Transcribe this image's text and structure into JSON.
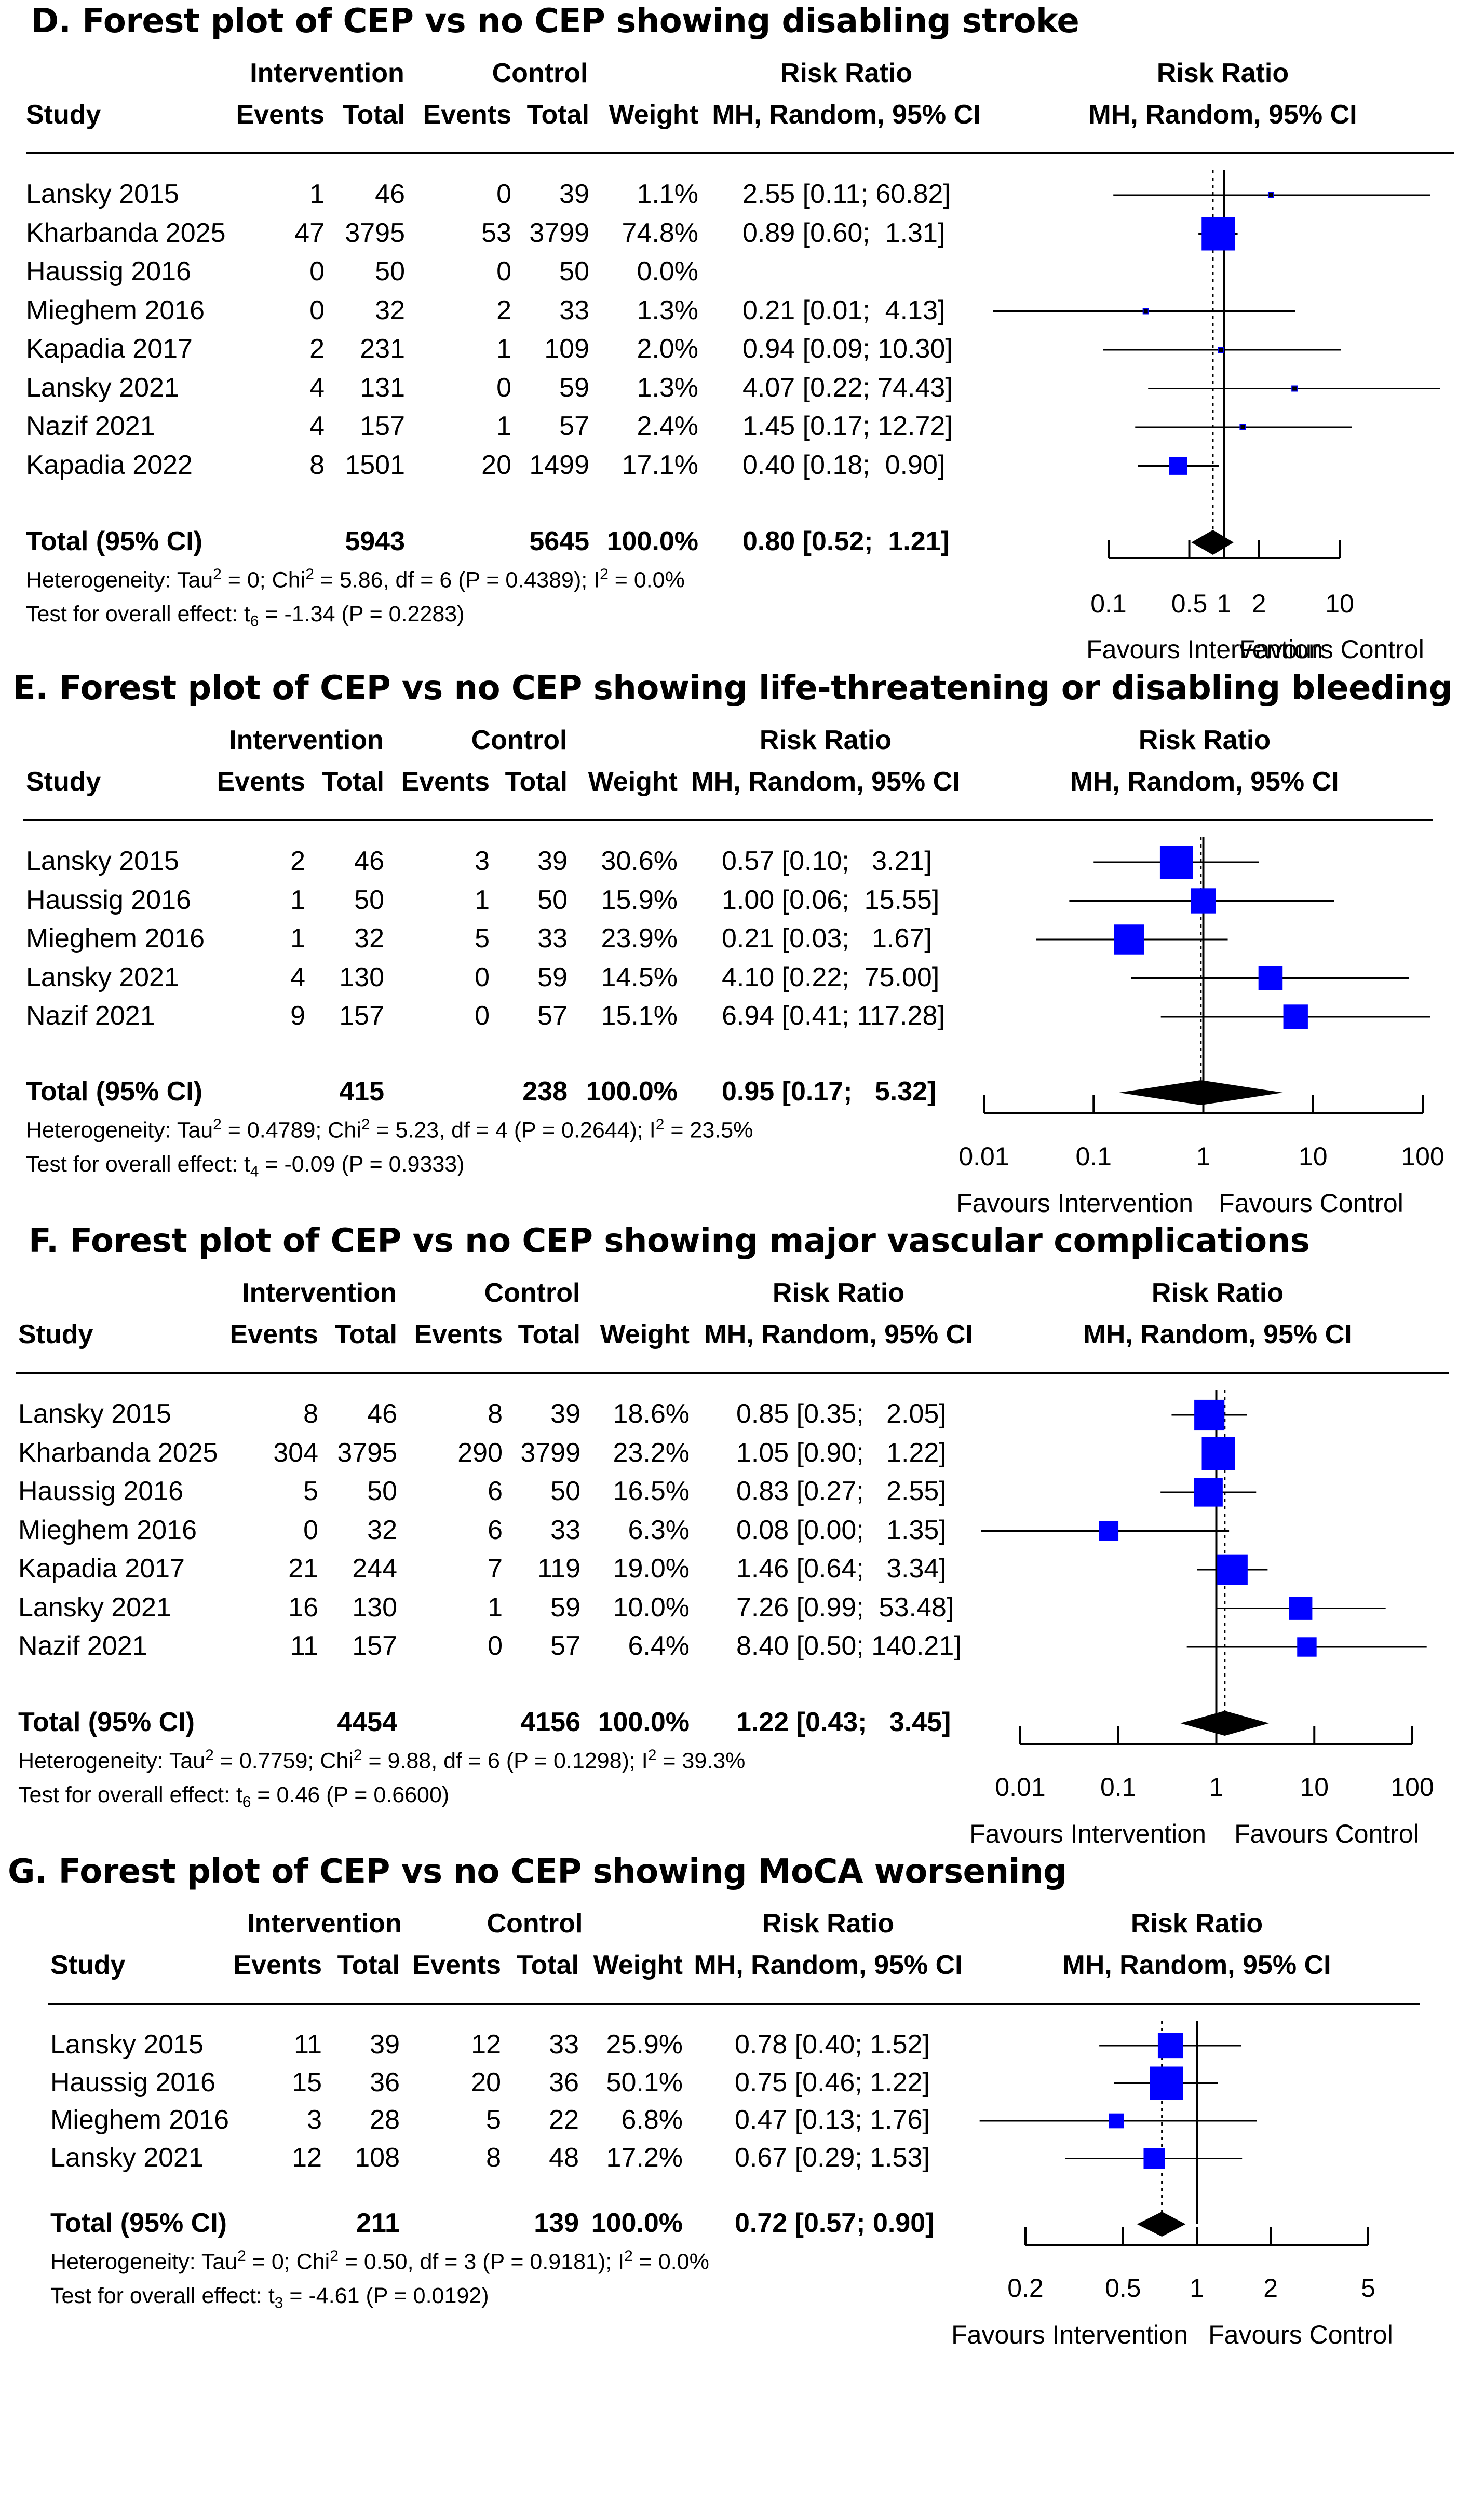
{
  "headers": {
    "study": "Study",
    "intervention": "Intervention",
    "control": "Control",
    "events": "Events",
    "total": "Total",
    "weight": "Weight",
    "risk_ratio": "Risk Ratio",
    "method": "MH, Random, 95% CI",
    "favours_intervention": "Favours Intervention",
    "favours_control": "Favours Control"
  },
  "colors": {
    "box": "#0000ff",
    "line": "#000000",
    "diamond": "#000000"
  },
  "chart_data": [
    {
      "type": "forest",
      "title": "D. Forest plot of CEP vs no CEP showing disabling stroke",
      "xscale": "log",
      "xlim": [
        0.1,
        10
      ],
      "ticks": [
        0.1,
        0.5,
        1,
        2,
        10
      ],
      "tick_labels": [
        "0.1",
        "0.5",
        "1",
        "2",
        "10"
      ],
      "studies": [
        {
          "name": "Lansky 2015",
          "ie": "1",
          "it": "46",
          "ce": "0",
          "ct": "39",
          "w": "1.1%",
          "ci": "2.55 [0.11; 60.82]",
          "rr": 2.55,
          "lo": 0.11,
          "hi": 60.82,
          "wt": 1.1
        },
        {
          "name": "Kharbanda 2025",
          "ie": "47",
          "it": "3795",
          "ce": "53",
          "ct": "3799",
          "w": "74.8%",
          "ci": "0.89 [0.60;  1.31]",
          "rr": 0.89,
          "lo": 0.6,
          "hi": 1.31,
          "wt": 74.8
        },
        {
          "name": "Haussig 2016",
          "ie": "0",
          "it": "50",
          "ce": "0",
          "ct": "50",
          "w": "0.0%",
          "ci": "",
          "rr": null,
          "lo": null,
          "hi": null,
          "wt": 0
        },
        {
          "name": "Mieghem 2016",
          "ie": "0",
          "it": "32",
          "ce": "2",
          "ct": "33",
          "w": "1.3%",
          "ci": "0.21 [0.01;  4.13]",
          "rr": 0.21,
          "lo": 0.01,
          "hi": 4.13,
          "wt": 1.3
        },
        {
          "name": "Kapadia 2017",
          "ie": "2",
          "it": "231",
          "ce": "1",
          "ct": "109",
          "w": "2.0%",
          "ci": "0.94 [0.09; 10.30]",
          "rr": 0.94,
          "lo": 0.09,
          "hi": 10.3,
          "wt": 2.0
        },
        {
          "name": "Lansky 2021",
          "ie": "4",
          "it": "131",
          "ce": "0",
          "ct": "59",
          "w": "1.3%",
          "ci": "4.07 [0.22; 74.43]",
          "rr": 4.07,
          "lo": 0.22,
          "hi": 74.43,
          "wt": 1.3
        },
        {
          "name": "Nazif 2021",
          "ie": "4",
          "it": "157",
          "ce": "1",
          "ct": "57",
          "w": "2.4%",
          "ci": "1.45 [0.17; 12.72]",
          "rr": 1.45,
          "lo": 0.17,
          "hi": 12.72,
          "wt": 2.4
        },
        {
          "name": "Kapadia 2022",
          "ie": "8",
          "it": "1501",
          "ce": "20",
          "ct": "1499",
          "w": "17.1%",
          "ci": "0.40 [0.18;  0.90]",
          "rr": 0.4,
          "lo": 0.18,
          "hi": 0.9,
          "wt": 17.1
        }
      ],
      "total": {
        "label": "Total (95% CI)",
        "it": "5943",
        "ct": "5645",
        "w": "100.0%",
        "ci": "0.80 [0.52;  1.21]",
        "rr": 0.8,
        "lo": 0.52,
        "hi": 1.21
      },
      "het_prefix": "Heterogeneity: Tau",
      "het_text": " = 0; Chi",
      "het_text2": " = 5.86, df = 6 (P = 0.4389); I",
      "het_text3": " = 0.0%",
      "sup2": "2",
      "test_prefix": "Test for overall effect: t",
      "test_sub": "6",
      "test_text": " = -1.34 (P = 0.2283)"
    },
    {
      "type": "forest",
      "title": "E. Forest plot of CEP vs no CEP showing life-threatening or disabling bleeding",
      "xscale": "log",
      "xlim": [
        0.01,
        100
      ],
      "ticks": [
        0.01,
        0.1,
        1,
        10,
        100
      ],
      "tick_labels": [
        "0.01",
        "0.1",
        "1",
        "10",
        "100"
      ],
      "studies": [
        {
          "name": "Lansky 2015",
          "ie": "2",
          "it": "46",
          "ce": "3",
          "ct": "39",
          "w": "30.6%",
          "ci": "0.57 [0.10;   3.21]",
          "rr": 0.57,
          "lo": 0.1,
          "hi": 3.21,
          "wt": 30.6
        },
        {
          "name": "Haussig 2016",
          "ie": "1",
          "it": "50",
          "ce": "1",
          "ct": "50",
          "w": "15.9%",
          "ci": "1.00 [0.06;  15.55]",
          "rr": 1.0,
          "lo": 0.06,
          "hi": 15.55,
          "wt": 15.9
        },
        {
          "name": "Mieghem 2016",
          "ie": "1",
          "it": "32",
          "ce": "5",
          "ct": "33",
          "w": "23.9%",
          "ci": "0.21 [0.03;   1.67]",
          "rr": 0.21,
          "lo": 0.03,
          "hi": 1.67,
          "wt": 23.9
        },
        {
          "name": "Lansky 2021",
          "ie": "4",
          "it": "130",
          "ce": "0",
          "ct": "59",
          "w": "14.5%",
          "ci": "4.10 [0.22;  75.00]",
          "rr": 4.1,
          "lo": 0.22,
          "hi": 75.0,
          "wt": 14.5
        },
        {
          "name": "Nazif 2021",
          "ie": "9",
          "it": "157",
          "ce": "0",
          "ct": "57",
          "w": "15.1%",
          "ci": "6.94 [0.41; 117.28]",
          "rr": 6.94,
          "lo": 0.41,
          "hi": 117.28,
          "wt": 15.1
        }
      ],
      "total": {
        "label": "Total (95% CI)",
        "it": "415",
        "ct": "238",
        "w": "100.0%",
        "ci": "0.95 [0.17;   5.32]",
        "rr": 0.95,
        "lo": 0.17,
        "hi": 5.32
      },
      "het_prefix": "Heterogeneity: Tau",
      "het_text": " = 0.4789; Chi",
      "het_text2": " = 5.23, df = 4 (P = 0.2644); I",
      "het_text3": " = 23.5%",
      "sup2": "2",
      "test_prefix": "Test for overall effect: t",
      "test_sub": "4",
      "test_text": " = -0.09 (P = 0.9333)"
    },
    {
      "type": "forest",
      "title": "F. Forest plot of CEP vs no CEP showing major vascular complications",
      "xscale": "log",
      "xlim": [
        0.01,
        100
      ],
      "ticks": [
        0.01,
        0.1,
        1,
        10,
        100
      ],
      "tick_labels": [
        "0.01",
        "0.1",
        "1",
        "10",
        "100"
      ],
      "studies": [
        {
          "name": "Lansky 2015",
          "ie": "8",
          "it": "46",
          "ce": "8",
          "ct": "39",
          "w": "18.6%",
          "ci": "0.85 [0.35;   2.05]",
          "rr": 0.85,
          "lo": 0.35,
          "hi": 2.05,
          "wt": 18.6
        },
        {
          "name": "Kharbanda 2025",
          "ie": "304",
          "it": "3795",
          "ce": "290",
          "ct": "3799",
          "w": "23.2%",
          "ci": "1.05 [0.90;   1.22]",
          "rr": 1.05,
          "lo": 0.9,
          "hi": 1.22,
          "wt": 23.2
        },
        {
          "name": "Haussig 2016",
          "ie": "5",
          "it": "50",
          "ce": "6",
          "ct": "50",
          "w": "16.5%",
          "ci": "0.83 [0.27;   2.55]",
          "rr": 0.83,
          "lo": 0.27,
          "hi": 2.55,
          "wt": 16.5
        },
        {
          "name": "Mieghem 2016",
          "ie": "0",
          "it": "32",
          "ce": "6",
          "ct": "33",
          "w": "6.3%",
          "ci": "0.08 [0.00;   1.35]",
          "rr": 0.08,
          "lo": 0.004,
          "hi": 1.35,
          "wt": 6.3
        },
        {
          "name": "Kapadia 2017",
          "ie": "21",
          "it": "244",
          "ce": "7",
          "ct": "119",
          "w": "19.0%",
          "ci": "1.46 [0.64;   3.34]",
          "rr": 1.46,
          "lo": 0.64,
          "hi": 3.34,
          "wt": 19.0
        },
        {
          "name": "Lansky 2021",
          "ie": "16",
          "it": "130",
          "ce": "1",
          "ct": "59",
          "w": "10.0%",
          "ci": "7.26 [0.99;  53.48]",
          "rr": 7.26,
          "lo": 0.99,
          "hi": 53.48,
          "wt": 10.0
        },
        {
          "name": "Nazif 2021",
          "ie": "11",
          "it": "157",
          "ce": "0",
          "ct": "57",
          "w": "6.4%",
          "ci": "8.40 [0.50; 140.21]",
          "rr": 8.4,
          "lo": 0.5,
          "hi": 140.21,
          "wt": 6.4
        }
      ],
      "total": {
        "label": "Total (95% CI)",
        "it": "4454",
        "ct": "4156",
        "w": "100.0%",
        "ci": "1.22 [0.43;   3.45]",
        "rr": 1.22,
        "lo": 0.43,
        "hi": 3.45
      },
      "het_prefix": "Heterogeneity: Tau",
      "het_text": " = 0.7759; Chi",
      "het_text2": " = 9.88, df = 6 (P = 0.1298); I",
      "het_text3": " = 39.3%",
      "sup2": "2",
      "test_prefix": "Test for overall effect: t",
      "test_sub": "6",
      "test_text": " = 0.46 (P = 0.6600)"
    },
    {
      "type": "forest",
      "title": "G. Forest plot of CEP vs no CEP showing MoCA worsening",
      "xscale": "log",
      "xlim": [
        0.2,
        5
      ],
      "ticks": [
        0.2,
        0.5,
        1,
        2,
        5
      ],
      "tick_labels": [
        "0.2",
        "0.5",
        "1",
        "2",
        "5"
      ],
      "studies": [
        {
          "name": "Lansky 2015",
          "ie": "11",
          "it": "39",
          "ce": "12",
          "ct": "33",
          "w": "25.9%",
          "ci": "0.78 [0.40; 1.52]",
          "rr": 0.78,
          "lo": 0.4,
          "hi": 1.52,
          "wt": 25.9
        },
        {
          "name": "Haussig 2016",
          "ie": "15",
          "it": "36",
          "ce": "20",
          "ct": "36",
          "w": "50.1%",
          "ci": "0.75 [0.46; 1.22]",
          "rr": 0.75,
          "lo": 0.46,
          "hi": 1.22,
          "wt": 50.1
        },
        {
          "name": "Mieghem 2016",
          "ie": "3",
          "it": "28",
          "ce": "5",
          "ct": "22",
          "w": "6.8%",
          "ci": "0.47 [0.13; 1.76]",
          "rr": 0.47,
          "lo": 0.13,
          "hi": 1.76,
          "wt": 6.8
        },
        {
          "name": "Lansky 2021",
          "ie": "12",
          "it": "108",
          "ce": "8",
          "ct": "48",
          "w": "17.2%",
          "ci": "0.67 [0.29; 1.53]",
          "rr": 0.67,
          "lo": 0.29,
          "hi": 1.53,
          "wt": 17.2
        }
      ],
      "total": {
        "label": "Total (95% CI)",
        "it": "211",
        "ct": "139",
        "w": "100.0%",
        "ci": "0.72 [0.57; 0.90]",
        "rr": 0.72,
        "lo": 0.57,
        "hi": 0.9
      },
      "het_prefix": "Heterogeneity: Tau",
      "het_text": " = 0; Chi",
      "het_text2": " = 0.50, df = 3 (P = 0.9181); I",
      "het_text3": " = 0.0%",
      "sup2": "2",
      "test_prefix": "Test for overall effect: t",
      "test_sub": "3",
      "test_text": " = -4.61 (P = 0.0192)"
    }
  ]
}
